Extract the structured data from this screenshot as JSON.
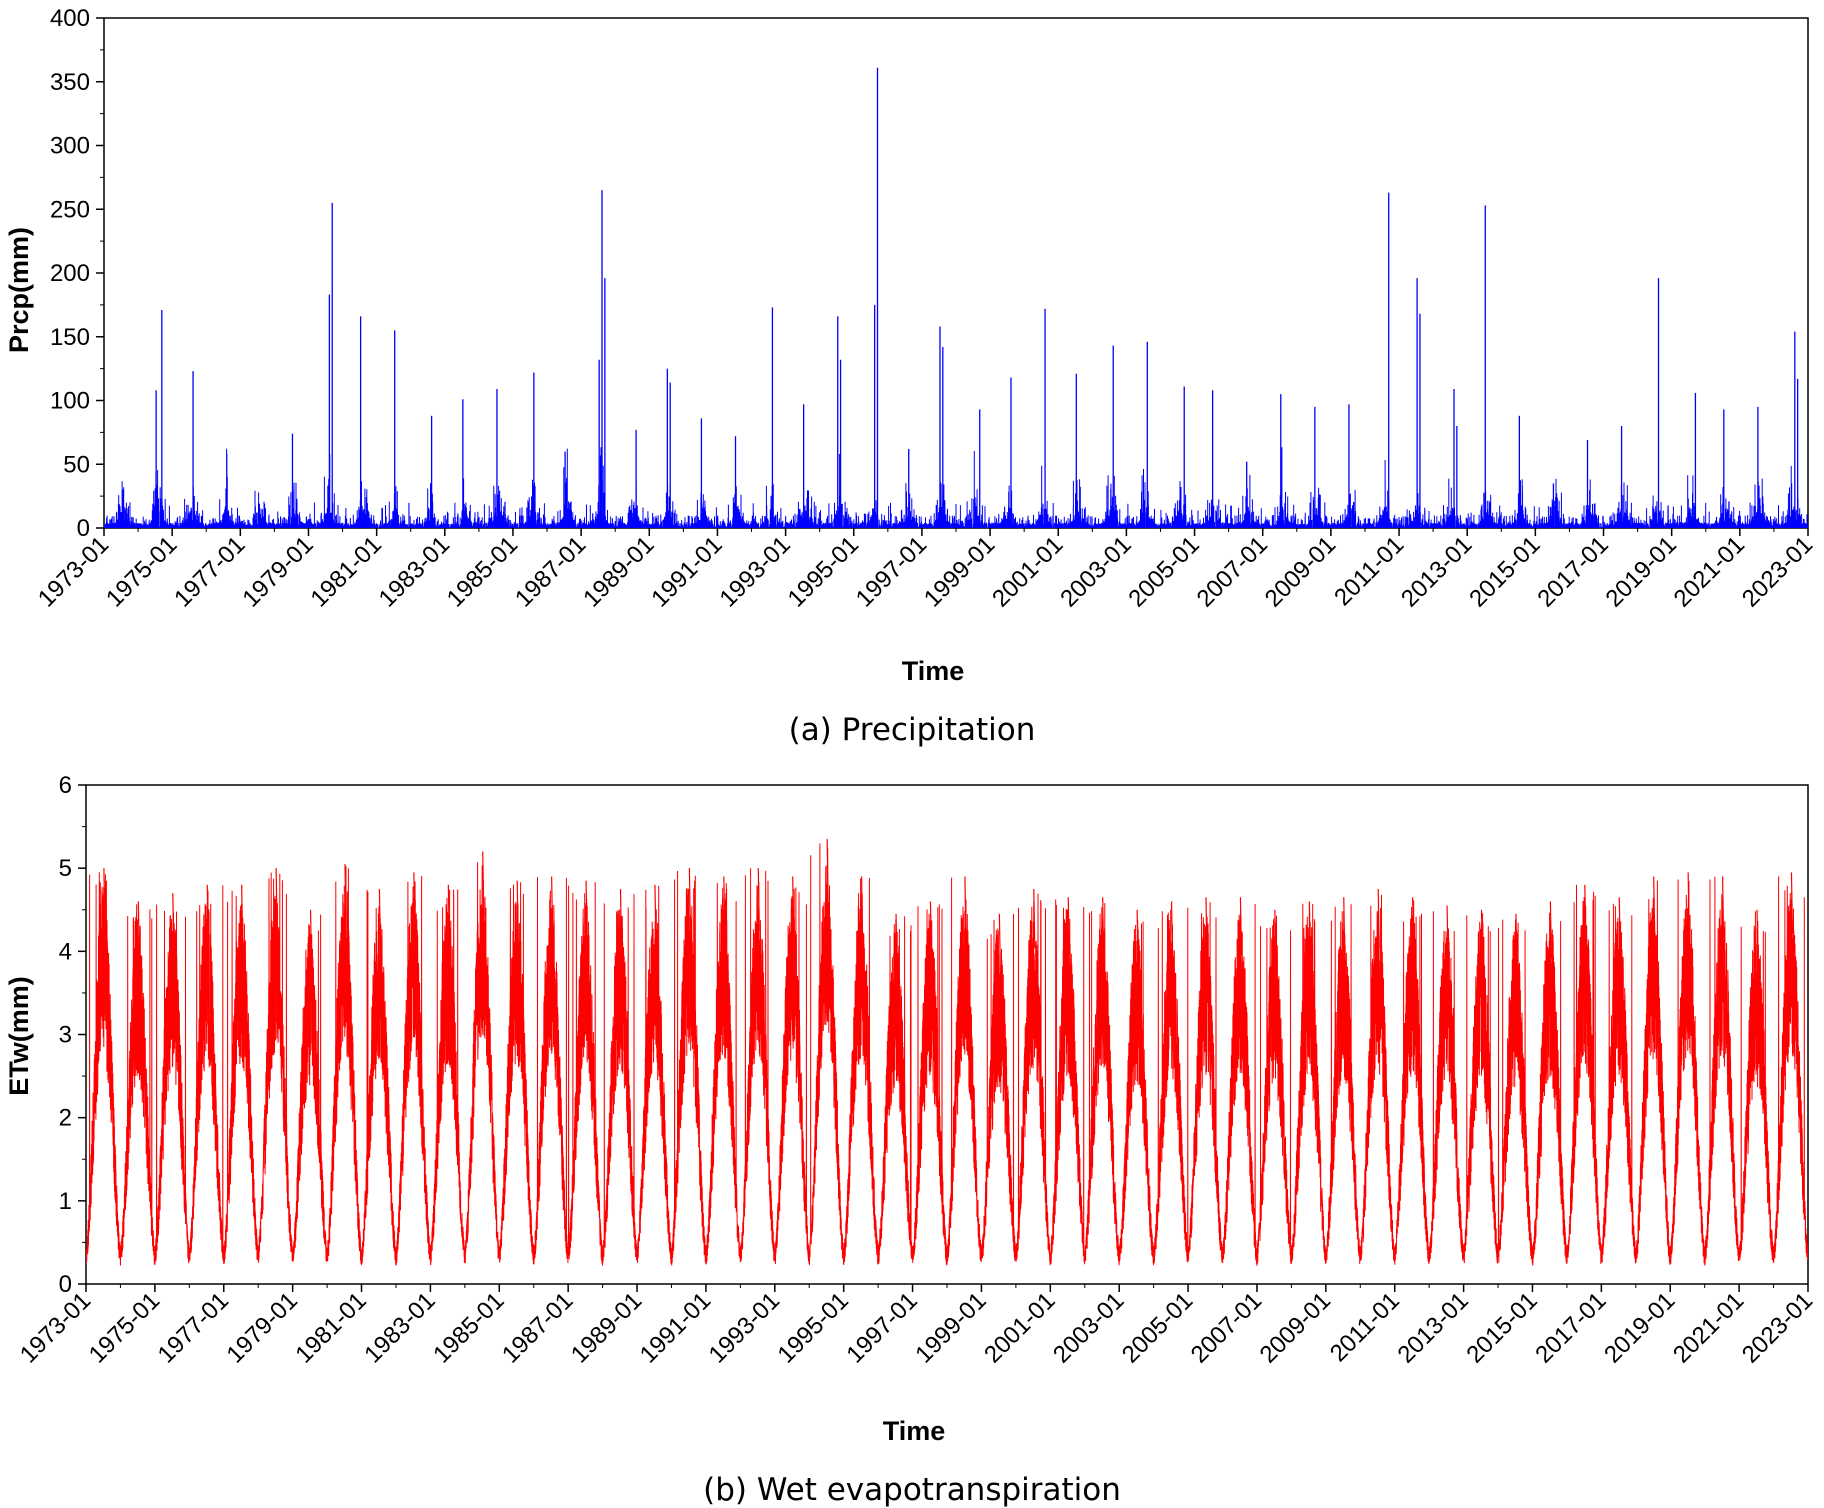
{
  "chart_data": [
    {
      "type": "line",
      "caption": "(a) Precipitation",
      "xlabel": "Time",
      "ylabel": "Prcp(mm)",
      "color": "#0000ff",
      "ylim": [
        0,
        400
      ],
      "yticks": [
        0,
        50,
        100,
        150,
        200,
        250,
        300,
        350,
        400
      ],
      "xlim": [
        "1973-01",
        "2023-01"
      ],
      "xticks": [
        "1973-01",
        "1975-01",
        "1977-01",
        "1979-01",
        "1981-01",
        "1983-01",
        "1985-01",
        "1987-01",
        "1989-01",
        "1991-01",
        "1993-01",
        "1995-01",
        "1997-01",
        "1999-01",
        "2001-01",
        "2003-01",
        "2005-01",
        "2007-01",
        "2009-01",
        "2011-01",
        "2013-01",
        "2015-01",
        "2017-01",
        "2019-01",
        "2021-01",
        "2023-01"
      ],
      "grid": false,
      "series": [
        {
          "x": [
            "1974-07",
            "1974-09",
            "1975-08",
            "1976-08",
            "1978-07",
            "1979-08",
            "1979-09",
            "1980-07",
            "1981-07",
            "1982-08",
            "1983-07",
            "1984-07",
            "1985-08",
            "1986-07",
            "1987-07",
            "1987-08",
            "1987-09",
            "1988-08",
            "1989-07",
            "1989-08",
            "1990-07",
            "1991-07",
            "1992-08",
            "1993-07",
            "1994-07",
            "1994-08",
            "1995-08",
            "1995-09",
            "1996-08",
            "1997-07",
            "1997-08",
            "1998-09",
            "1999-08",
            "2000-08",
            "2001-07",
            "2002-08",
            "2003-08",
            "2004-09",
            "2005-07",
            "2006-07",
            "2007-07",
            "2008-07",
            "2009-07",
            "2010-09",
            "2011-07",
            "2011-08",
            "2012-08",
            "2012-09",
            "2013-07",
            "2014-07",
            "2015-07",
            "2016-07",
            "2017-07",
            "2018-08",
            "2019-09",
            "2020-07",
            "2021-07",
            "2022-08",
            "2022-09"
          ],
          "y": [
            108,
            171,
            123,
            40,
            74,
            183,
            255,
            166,
            155,
            88,
            101,
            109,
            122,
            60,
            132,
            265,
            196,
            77,
            125,
            114,
            86,
            72,
            173,
            97,
            166,
            132,
            175,
            361,
            62,
            158,
            142,
            93,
            118,
            172,
            121,
            143,
            146,
            111,
            108,
            52,
            105,
            95,
            97,
            263,
            196,
            168,
            109,
            80,
            253,
            88,
            35,
            69,
            80,
            196,
            106,
            93,
            95,
            154,
            117
          ]
        }
      ]
    },
    {
      "type": "line",
      "caption": "(b) Wet evapotranspiration",
      "xlabel": "Time",
      "ylabel": "ETw(mm)",
      "color": "#ff0000",
      "ylim": [
        0,
        6
      ],
      "yticks": [
        0,
        1,
        2,
        3,
        4,
        5,
        6
      ],
      "xlim": [
        "1973-01",
        "2023-01"
      ],
      "xticks": [
        "1973-01",
        "1975-01",
        "1977-01",
        "1979-01",
        "1981-01",
        "1983-01",
        "1985-01",
        "1987-01",
        "1989-01",
        "1991-01",
        "1993-01",
        "1995-01",
        "1997-01",
        "1999-01",
        "2001-01",
        "2003-01",
        "2005-01",
        "2007-01",
        "2009-01",
        "2011-01",
        "2013-01",
        "2015-01",
        "2017-01",
        "2019-01",
        "2021-01",
        "2023-01"
      ],
      "grid": false,
      "annual_peaks": [
        {
          "year": 1973,
          "peak": 5.0
        },
        {
          "year": 1974,
          "peak": 4.6
        },
        {
          "year": 1975,
          "peak": 4.7
        },
        {
          "year": 1976,
          "peak": 4.8
        },
        {
          "year": 1977,
          "peak": 4.8
        },
        {
          "year": 1978,
          "peak": 5.0
        },
        {
          "year": 1979,
          "peak": 4.5
        },
        {
          "year": 1980,
          "peak": 5.05
        },
        {
          "year": 1981,
          "peak": 4.75
        },
        {
          "year": 1982,
          "peak": 4.95
        },
        {
          "year": 1983,
          "peak": 4.8
        },
        {
          "year": 1984,
          "peak": 5.2
        },
        {
          "year": 1985,
          "peak": 4.85
        },
        {
          "year": 1986,
          "peak": 4.9
        },
        {
          "year": 1987,
          "peak": 4.85
        },
        {
          "year": 1988,
          "peak": 4.75
        },
        {
          "year": 1989,
          "peak": 4.8
        },
        {
          "year": 1990,
          "peak": 5.0
        },
        {
          "year": 1991,
          "peak": 4.9
        },
        {
          "year": 1992,
          "peak": 5.0
        },
        {
          "year": 1993,
          "peak": 4.9
        },
        {
          "year": 1994,
          "peak": 5.35
        },
        {
          "year": 1995,
          "peak": 4.9
        },
        {
          "year": 1996,
          "peak": 4.45
        },
        {
          "year": 1997,
          "peak": 4.6
        },
        {
          "year": 1998,
          "peak": 4.9
        },
        {
          "year": 1999,
          "peak": 4.45
        },
        {
          "year": 2000,
          "peak": 4.75
        },
        {
          "year": 2001,
          "peak": 4.65
        },
        {
          "year": 2002,
          "peak": 4.65
        },
        {
          "year": 2003,
          "peak": 4.5
        },
        {
          "year": 2004,
          "peak": 4.6
        },
        {
          "year": 2005,
          "peak": 4.65
        },
        {
          "year": 2006,
          "peak": 4.65
        },
        {
          "year": 2007,
          "peak": 4.5
        },
        {
          "year": 2008,
          "peak": 4.6
        },
        {
          "year": 2009,
          "peak": 4.65
        },
        {
          "year": 2010,
          "peak": 4.75
        },
        {
          "year": 2011,
          "peak": 4.65
        },
        {
          "year": 2012,
          "peak": 4.55
        },
        {
          "year": 2013,
          "peak": 4.5
        },
        {
          "year": 2014,
          "peak": 4.45
        },
        {
          "year": 2015,
          "peak": 4.6
        },
        {
          "year": 2016,
          "peak": 4.8
        },
        {
          "year": 2017,
          "peak": 4.65
        },
        {
          "year": 2018,
          "peak": 4.9
        },
        {
          "year": 2019,
          "peak": 4.95
        },
        {
          "year": 2020,
          "peak": 4.9
        },
        {
          "year": 2021,
          "peak": 4.5
        },
        {
          "year": 2022,
          "peak": 4.95
        }
      ],
      "winter_min_approx": 0.35
    }
  ]
}
